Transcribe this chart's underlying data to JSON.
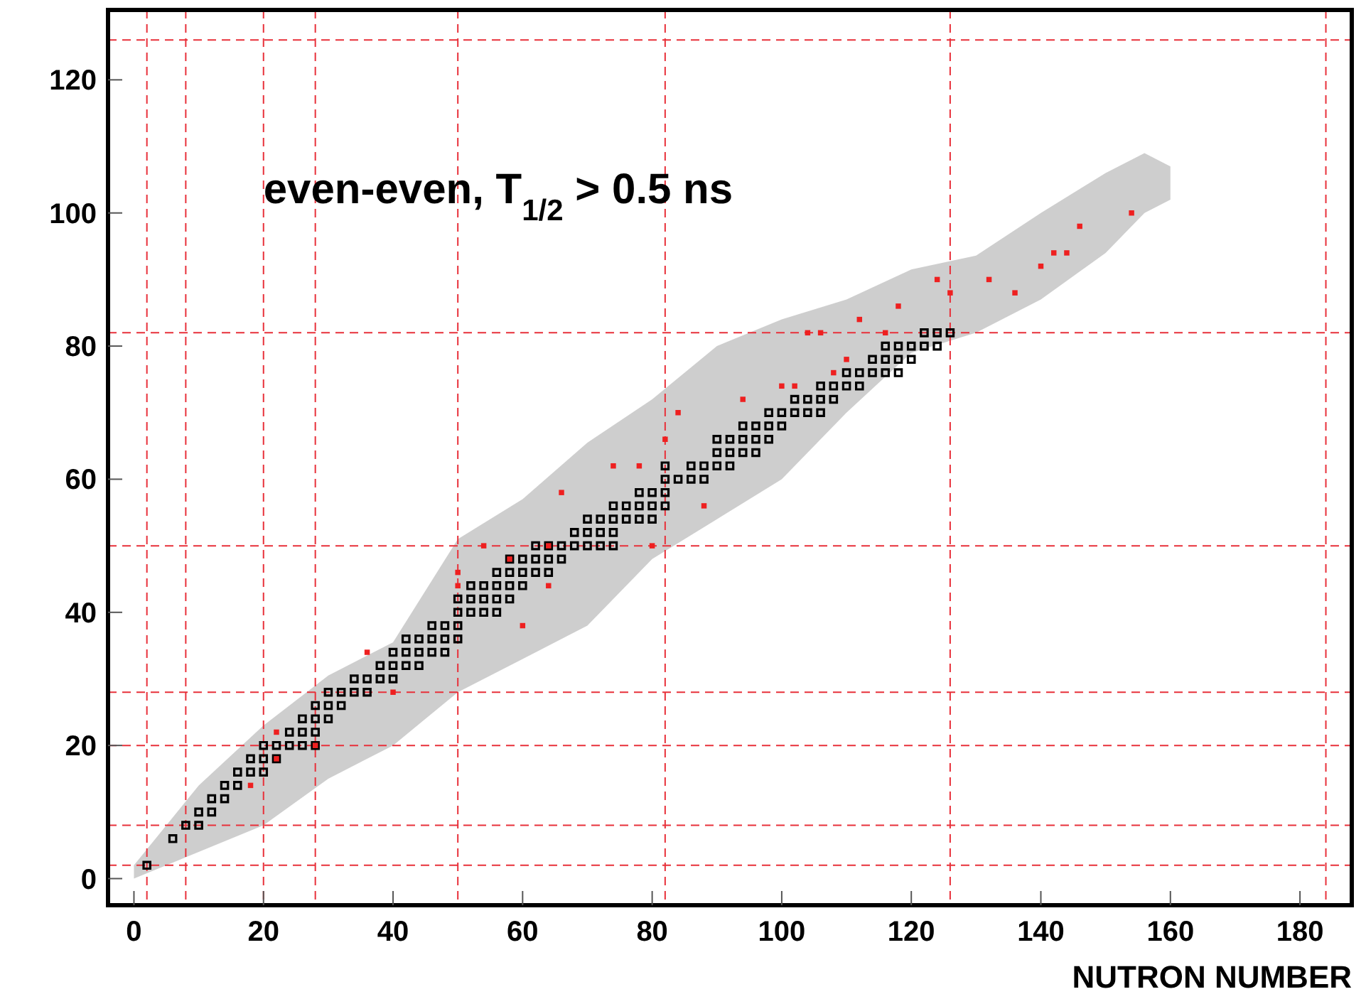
{
  "chart_data": {
    "type": "scatter",
    "xlabel": "NUTRON NUMBER",
    "annotations": [
      "even-even, T$_{1/2}$ > 0.5 ns"
    ],
    "xlim": [
      -4,
      188
    ],
    "ylim": [
      -4,
      130.5
    ],
    "xticks": [
      0,
      20,
      40,
      60,
      80,
      100,
      120,
      140,
      160,
      180
    ],
    "yticks": [
      0,
      20,
      40,
      60,
      80,
      100,
      120
    ],
    "grid": false,
    "ref_lines": [
      {
        "axis": "x",
        "value": 2,
        "color": "#e8303a",
        "line_style": "dashed"
      },
      {
        "axis": "x",
        "value": 8,
        "color": "#e8303a",
        "line_style": "dashed"
      },
      {
        "axis": "x",
        "value": 20,
        "color": "#e8303a",
        "line_style": "dashed"
      },
      {
        "axis": "x",
        "value": 28,
        "color": "#e8303a",
        "line_style": "dashed"
      },
      {
        "axis": "x",
        "value": 50,
        "color": "#e8303a",
        "line_style": "dashed"
      },
      {
        "axis": "x",
        "value": 82,
        "color": "#e8303a",
        "line_style": "dashed"
      },
      {
        "axis": "x",
        "value": 126,
        "color": "#e8303a",
        "line_style": "dashed"
      },
      {
        "axis": "x",
        "value": 184,
        "color": "#e8303a",
        "line_style": "dashed"
      },
      {
        "axis": "y",
        "value": 2,
        "color": "#e8303a",
        "line_style": "dashed"
      },
      {
        "axis": "y",
        "value": 8,
        "color": "#e8303a",
        "line_style": "dashed"
      },
      {
        "axis": "y",
        "value": 20,
        "color": "#e8303a",
        "line_style": "dashed"
      },
      {
        "axis": "y",
        "value": 28,
        "color": "#e8303a",
        "line_style": "dashed"
      },
      {
        "axis": "y",
        "value": 50,
        "color": "#e8303a",
        "line_style": "dashed"
      },
      {
        "axis": "y",
        "value": 82,
        "color": "#e8303a",
        "line_style": "dashed"
      },
      {
        "axis": "y",
        "value": 126,
        "color": "#e8303a",
        "line_style": "dashed"
      }
    ],
    "series": [
      {
        "type": "line",
        "color": "#bdbdbd",
        "x": [
          0,
          10,
          20,
          30,
          40,
          50,
          60,
          70,
          80,
          90,
          100,
          110,
          120,
          130,
          140,
          150,
          156,
          160
        ],
        "values": [
          null,
          null,
          null,
          null,
          null,
          null,
          null,
          null,
          null,
          null,
          null,
          null,
          null,
          null,
          null,
          null,
          null,
          null
        ],
        "upper": [
          2,
          14,
          23,
          30.5,
          35.5,
          51,
          57,
          65.5,
          72,
          80,
          84,
          87,
          91.5,
          93.6,
          100,
          106,
          109,
          107
        ],
        "lower": [
          0,
          4,
          8,
          15,
          20,
          28,
          33,
          38,
          48,
          54,
          60,
          70,
          79,
          82,
          87,
          94,
          100,
          102
        ]
      },
      {
        "marker": "square",
        "color": "#000000",
        "x": [
          2,
          6,
          8,
          10,
          10,
          12,
          12,
          14,
          14,
          16,
          16,
          18,
          20,
          18,
          20,
          22,
          20,
          22,
          24,
          26,
          28,
          24,
          26,
          28,
          26,
          28,
          30,
          28,
          30,
          32,
          30,
          32,
          34,
          36,
          34,
          36,
          38,
          40,
          38,
          40,
          42,
          44,
          40,
          42,
          44,
          46,
          48,
          42,
          44,
          46,
          48,
          50,
          46,
          48,
          50,
          50,
          52,
          54,
          56,
          50,
          52,
          54,
          56,
          58,
          52,
          54,
          56,
          58,
          60,
          56,
          58,
          60,
          62,
          64,
          58,
          60,
          62,
          64,
          66,
          62,
          64,
          66,
          68,
          70,
          72,
          74,
          68,
          70,
          72,
          74,
          70,
          72,
          74,
          76,
          78,
          80,
          74,
          76,
          78,
          80,
          82,
          78,
          80,
          82,
          82,
          84,
          86,
          88,
          82,
          86,
          88,
          90,
          92,
          90,
          92,
          94,
          96,
          90,
          92,
          94,
          96,
          98,
          94,
          96,
          98,
          100,
          98,
          100,
          102,
          104,
          106,
          102,
          104,
          106,
          108,
          106,
          108,
          110,
          112,
          110,
          112,
          114,
          116,
          118,
          114,
          116,
          118,
          120,
          116,
          118,
          120,
          122,
          124,
          122,
          124,
          126
        ],
        "values": [
          2,
          6,
          8,
          8,
          10,
          10,
          12,
          12,
          14,
          14,
          16,
          16,
          16,
          18,
          18,
          18,
          20,
          20,
          20,
          20,
          20,
          22,
          22,
          22,
          24,
          24,
          24,
          26,
          26,
          26,
          28,
          28,
          28,
          28,
          30,
          30,
          30,
          30,
          32,
          32,
          32,
          32,
          34,
          34,
          34,
          34,
          34,
          36,
          36,
          36,
          36,
          36,
          38,
          38,
          38,
          40,
          40,
          40,
          40,
          42,
          42,
          42,
          42,
          42,
          44,
          44,
          44,
          44,
          44,
          46,
          46,
          46,
          46,
          46,
          48,
          48,
          48,
          48,
          48,
          50,
          50,
          50,
          50,
          50,
          50,
          50,
          52,
          52,
          52,
          52,
          54,
          54,
          54,
          54,
          54,
          54,
          56,
          56,
          56,
          56,
          56,
          58,
          58,
          58,
          60,
          60,
          60,
          60,
          62,
          62,
          62,
          62,
          62,
          64,
          64,
          64,
          64,
          66,
          66,
          66,
          66,
          66,
          68,
          68,
          68,
          68,
          70,
          70,
          70,
          70,
          70,
          72,
          72,
          72,
          72,
          74,
          74,
          74,
          74,
          76,
          76,
          76,
          76,
          76,
          78,
          78,
          78,
          78,
          80,
          80,
          80,
          80,
          80,
          82,
          82,
          82
        ]
      },
      {
        "marker": "square",
        "color": "#ee2020",
        "x": [
          18,
          22,
          22,
          28,
          40,
          36,
          50,
          60,
          64,
          58,
          50,
          54,
          66,
          74,
          82,
          84,
          94,
          100,
          106,
          112,
          118,
          126,
          116,
          78,
          88,
          64,
          80,
          108,
          154,
          146,
          142,
          144,
          140,
          132,
          136,
          124,
          104,
          110,
          102
        ],
        "values": [
          14,
          18,
          22,
          20,
          28,
          34,
          44,
          38,
          44,
          48,
          46,
          50,
          58,
          62,
          66,
          70,
          72,
          74,
          82,
          84,
          86,
          88,
          82,
          62,
          56,
          50,
          50,
          76,
          100,
          98,
          94,
          94,
          92,
          90,
          88,
          90,
          82,
          78,
          74
        ]
      }
    ]
  }
}
